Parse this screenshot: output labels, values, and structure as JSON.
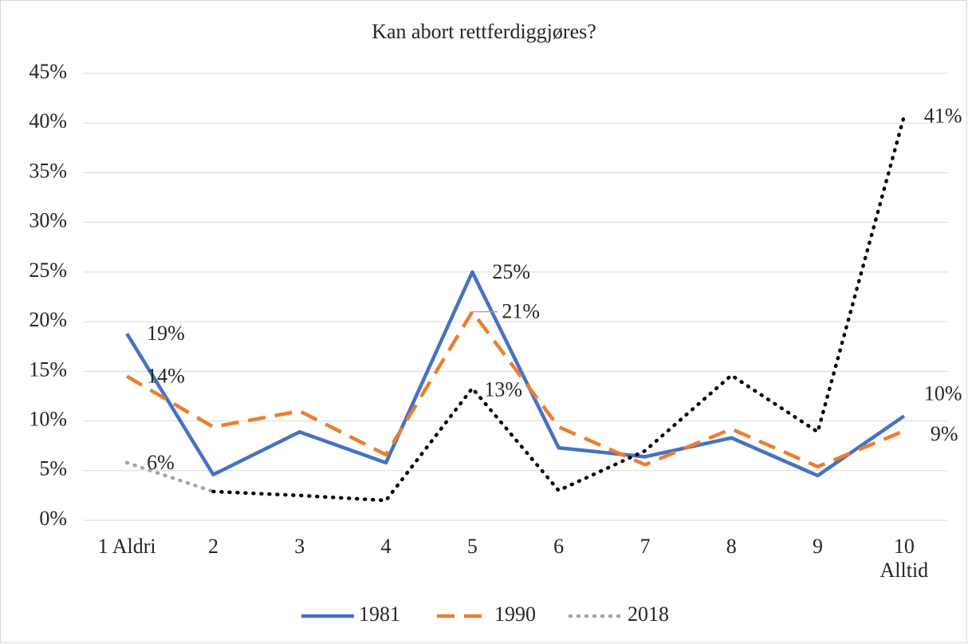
{
  "chart_data": {
    "type": "line",
    "title": "Kan abort rettferdiggjøres?",
    "categories": [
      "1 Aldri",
      "2",
      "3",
      "4",
      "5",
      "6",
      "7",
      "8",
      "9",
      "10 Alltid"
    ],
    "series": [
      {
        "name": "1981",
        "color": "#4472c4",
        "dash": "solid",
        "values": [
          18.8,
          4.6,
          8.9,
          5.8,
          25,
          7.3,
          6.4,
          8.3,
          4.5,
          10.5
        ],
        "value_labels": [
          "19%",
          null,
          null,
          null,
          "25%",
          null,
          null,
          null,
          null,
          "10%"
        ]
      },
      {
        "name": "1990",
        "color": "#ed7d31",
        "dash": "dashed",
        "values": [
          14.5,
          9.4,
          11.0,
          6.6,
          21,
          9.4,
          5.6,
          9.2,
          5.4,
          9.0
        ],
        "value_labels": [
          "14%",
          null,
          null,
          null,
          "21%",
          null,
          null,
          null,
          null,
          "9%"
        ]
      },
      {
        "name": "2018",
        "color": "#a6a6a6",
        "line_color": "#000000",
        "dash": "dotted",
        "values": [
          5.8,
          2.9,
          2.5,
          2.0,
          13.3,
          3.0,
          7.0,
          14.6,
          8.9,
          40.7
        ],
        "value_labels": [
          "6%",
          null,
          null,
          null,
          "13%",
          null,
          null,
          null,
          null,
          "41%"
        ]
      }
    ],
    "ylim": [
      0,
      45
    ],
    "yticks": [
      {
        "value": 0,
        "label": "0%"
      },
      {
        "value": 5,
        "label": "5%"
      },
      {
        "value": 10,
        "label": "10%"
      },
      {
        "value": 15,
        "label": "15%"
      },
      {
        "value": 20,
        "label": "20%"
      },
      {
        "value": 25,
        "label": "25%"
      },
      {
        "value": 30,
        "label": "30%"
      },
      {
        "value": 35,
        "label": "35%"
      },
      {
        "value": 40,
        "label": "40%"
      },
      {
        "value": 45,
        "label": "45%"
      }
    ],
    "grid": true,
    "legend": "bottom"
  }
}
